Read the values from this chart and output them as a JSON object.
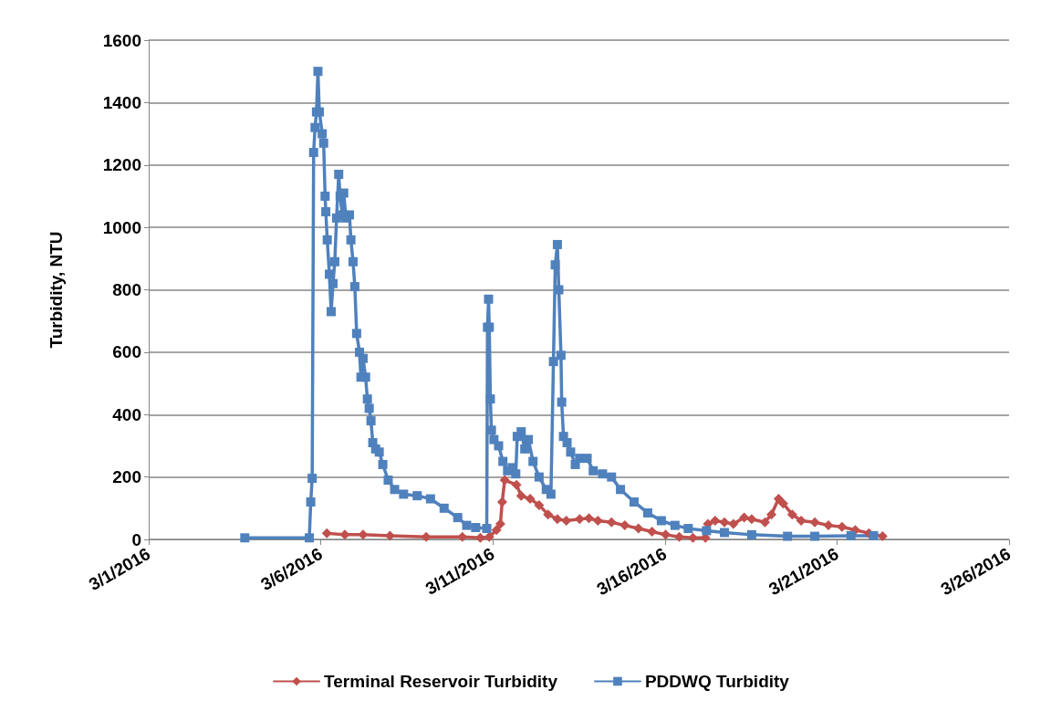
{
  "chart_data": {
    "type": "line",
    "ylabel": "Turbidity, NTU",
    "xlim": [
      "2016-03-01",
      "2016-03-26"
    ],
    "xticks": [
      {
        "value": "2016-03-01",
        "label": "3/1/2016"
      },
      {
        "value": "2016-03-06",
        "label": "3/6/2016"
      },
      {
        "value": "2016-03-11",
        "label": "3/11/2016"
      },
      {
        "value": "2016-03-16",
        "label": "3/16/2016"
      },
      {
        "value": "2016-03-21",
        "label": "3/21/2016"
      },
      {
        "value": "2016-03-26",
        "label": "3/26/2016"
      }
    ],
    "ylim": [
      0,
      1600
    ],
    "yticks": [
      0,
      200,
      400,
      600,
      800,
      1000,
      1200,
      1400,
      1600
    ],
    "grid": "y",
    "legend": "bottom",
    "line_style": "solid",
    "series": [
      {
        "name": "Terminal Reservoir Turbidity",
        "color": "#c0504d",
        "marker": "diamond",
        "x": [
          "2016-03-06T04:15",
          "2016-03-06T16:45",
          "2016-03-07T05:30",
          "2016-03-08T00:15",
          "2016-03-09T01:30",
          "2016-03-10T02:45",
          "2016-03-10T15:15",
          "2016-03-10T21:30",
          "2016-03-11T02:30",
          "2016-03-11T05:15",
          "2016-03-11T06:30",
          "2016-03-11T08:15",
          "2016-03-11T16:30",
          "2016-03-11T19:45",
          "2016-03-12T02:00",
          "2016-03-12T08:15",
          "2016-03-12T14:30",
          "2016-03-12T21:00",
          "2016-03-13T03:15",
          "2016-03-13T12:30",
          "2016-03-13T19:00",
          "2016-03-14T01:15",
          "2016-03-14T10:45",
          "2016-03-14T20:00",
          "2016-03-15T05:30",
          "2016-03-15T15:00",
          "2016-03-16T00:30",
          "2016-03-16T10:00",
          "2016-03-16T19:30",
          "2016-03-17T04:15",
          "2016-03-17T06:00",
          "2016-03-17T11:00",
          "2016-03-17T17:30",
          "2016-03-17T23:45",
          "2016-03-18T07:15",
          "2016-03-18T12:30",
          "2016-03-18T21:45",
          "2016-03-19T02:15",
          "2016-03-19T07:15",
          "2016-03-19T10:30",
          "2016-03-19T16:45",
          "2016-03-19T23:00",
          "2016-03-20T08:30",
          "2016-03-20T18:00",
          "2016-03-21T03:30",
          "2016-03-21T12:45",
          "2016-03-21T22:15",
          "2016-03-22T07:45"
        ],
        "values": [
          20,
          15,
          15,
          12,
          8,
          8,
          5,
          8,
          30,
          50,
          120,
          190,
          175,
          140,
          130,
          110,
          80,
          65,
          60,
          65,
          68,
          60,
          55,
          45,
          35,
          25,
          15,
          8,
          5,
          5,
          50,
          60,
          55,
          50,
          70,
          65,
          55,
          80,
          130,
          115,
          80,
          60,
          55,
          45,
          40,
          30,
          20,
          10
        ]
      },
      {
        "name": "PDDWQ Turbidity",
        "color": "#4f81bd",
        "marker": "square",
        "x": [
          "2016-03-03T19:00",
          "2016-03-05T16:00",
          "2016-03-05T17:00",
          "2016-03-05T18:00",
          "2016-03-05T19:00",
          "2016-03-05T20:00",
          "2016-03-05T21:00",
          "2016-03-05T22:00",
          "2016-03-05T23:00",
          "2016-03-06T01:00",
          "2016-03-06T02:00",
          "2016-03-06T03:00",
          "2016-03-06T03:30",
          "2016-03-06T04:30",
          "2016-03-06T06:00",
          "2016-03-06T07:15",
          "2016-03-06T08:30",
          "2016-03-06T09:45",
          "2016-03-06T11:00",
          "2016-03-06T12:30",
          "2016-03-06T13:30",
          "2016-03-06T15:00",
          "2016-03-06T16:00",
          "2016-03-06T17:30",
          "2016-03-06T20:00",
          "2016-03-06T21:00",
          "2016-03-06T22:30",
          "2016-03-06T23:45",
          "2016-03-07T01:00",
          "2016-03-07T03:00",
          "2016-03-07T04:00",
          "2016-03-07T05:30",
          "2016-03-07T07:15",
          "2016-03-07T08:30",
          "2016-03-07T09:45",
          "2016-03-07T11:00",
          "2016-03-07T12:15",
          "2016-03-07T14:15",
          "2016-03-07T16:45",
          "2016-03-07T19:15",
          "2016-03-07T23:00",
          "2016-03-08T03:30",
          "2016-03-08T09:45",
          "2016-03-08T19:15",
          "2016-03-09T04:30",
          "2016-03-09T14:00",
          "2016-03-09T23:30",
          "2016-03-10T05:45",
          "2016-03-10T12:00",
          "2016-03-10T19:45",
          "2016-03-10T20:15",
          "2016-03-10T21:00",
          "2016-03-10T21:30",
          "2016-03-10T22:15",
          "2016-03-10T23:00",
          "2016-03-11T00:45",
          "2016-03-11T04:00",
          "2016-03-11T07:00",
          "2016-03-11T10:15",
          "2016-03-11T13:30",
          "2016-03-11T16:00",
          "2016-03-11T17:00",
          "2016-03-11T19:45",
          "2016-03-11T22:15",
          "2016-03-12T00:45",
          "2016-03-12T04:00",
          "2016-03-12T08:15",
          "2016-03-12T13:15",
          "2016-03-12T16:30",
          "2016-03-12T18:15",
          "2016-03-12T19:30",
          "2016-03-12T21:00",
          "2016-03-12T22:00",
          "2016-03-12T23:30",
          "2016-03-13T00:00",
          "2016-03-13T01:15",
          "2016-03-13T03:45",
          "2016-03-13T06:15",
          "2016-03-13T09:30",
          "2016-03-13T12:30",
          "2016-03-13T17:45",
          "2016-03-13T22:00",
          "2016-03-14T04:30",
          "2016-03-14T10:45",
          "2016-03-14T17:00",
          "2016-03-15T02:30",
          "2016-03-15T12:00",
          "2016-03-15T21:30",
          "2016-03-16T07:00",
          "2016-03-16T16:15",
          "2016-03-17T05:00",
          "2016-03-17T17:30",
          "2016-03-18T12:30",
          "2016-03-19T13:30",
          "2016-03-20T08:30",
          "2016-03-21T09:45",
          "2016-03-22T01:30"
        ],
        "values": [
          5,
          5,
          120,
          196,
          1240,
          1320,
          1370,
          1500,
          1370,
          1300,
          1270,
          1100,
          1050,
          960,
          850,
          730,
          820,
          890,
          1030,
          1170,
          1100,
          1040,
          1110,
          1030,
          1040,
          960,
          890,
          810,
          660,
          600,
          520,
          580,
          520,
          450,
          420,
          380,
          310,
          290,
          280,
          240,
          190,
          160,
          145,
          140,
          130,
          100,
          70,
          45,
          38,
          35,
          680,
          770,
          680,
          450,
          350,
          320,
          300,
          250,
          220,
          230,
          210,
          330,
          345,
          290,
          320,
          250,
          200,
          160,
          145,
          570,
          880,
          945,
          800,
          590,
          440,
          330,
          310,
          280,
          240,
          260,
          260,
          220,
          210,
          200,
          160,
          120,
          85,
          60,
          45,
          35,
          28,
          22,
          15,
          10,
          10,
          12,
          12
        ]
      }
    ]
  }
}
